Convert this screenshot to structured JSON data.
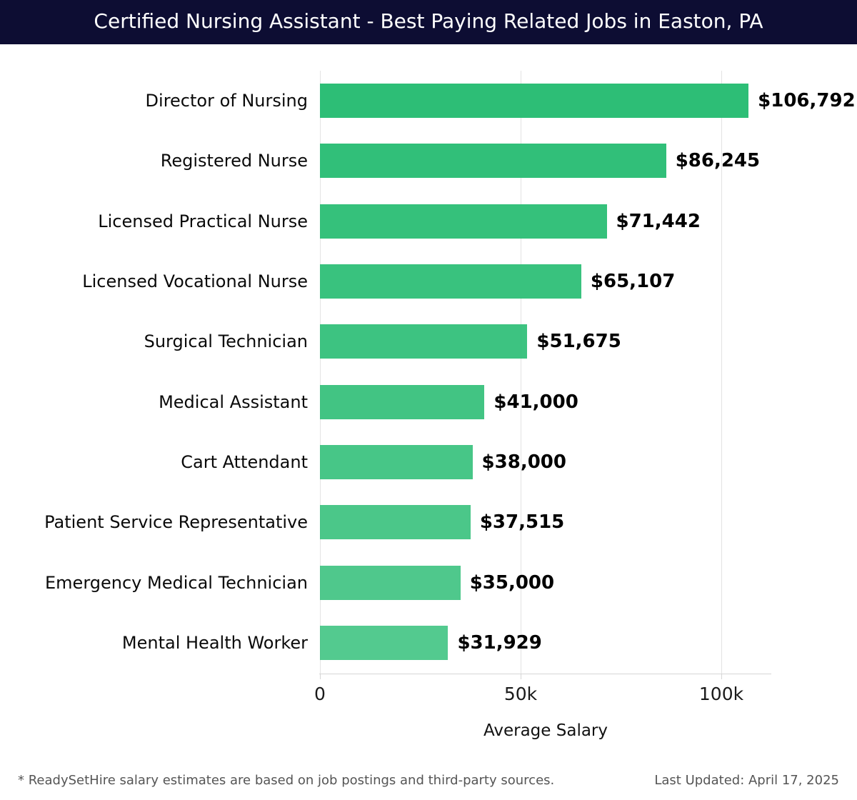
{
  "header": {
    "title": "Certified Nursing Assistant - Best Paying Related Jobs in Easton, PA",
    "bg_color": "#0d0d33",
    "text_color": "#ffffff"
  },
  "chart_data": {
    "type": "bar",
    "orientation": "horizontal",
    "title": "Certified Nursing Assistant - Best Paying Related Jobs in Easton, PA",
    "categories": [
      "Director of Nursing",
      "Registered Nurse",
      "Licensed Practical Nurse",
      "Licensed Vocational Nurse",
      "Surgical Technician",
      "Medical Assistant",
      "Cart Attendant",
      "Patient Service Representative",
      "Emergency Medical Technician",
      "Mental Health Worker"
    ],
    "values": [
      106792,
      86245,
      71442,
      65107,
      51675,
      41000,
      38000,
      37515,
      35000,
      31929
    ],
    "value_labels": [
      "$106,792",
      "$86,245",
      "$71,442",
      "$65,107",
      "$51,675",
      "$41,000",
      "$38,000",
      "$37,515",
      "$35,000",
      "$31,929"
    ],
    "xlabel": "Average Salary",
    "ylabel": "",
    "xlim": [
      0,
      112500
    ],
    "x_ticks": [
      {
        "value": 0,
        "label": "0"
      },
      {
        "value": 50000,
        "label": "50k"
      },
      {
        "value": 100000,
        "label": "100k"
      }
    ],
    "grid": true,
    "legend": false,
    "bar_color": "#2dbe76",
    "bar_opacity_start": 1.0,
    "bar_opacity_step": 0.02,
    "gridline_color": "#e3e3e3",
    "axis_line_color": "#d6d6d6"
  },
  "footer": {
    "note": "* ReadySetHire salary estimates are based on job postings and third-party sources.",
    "last_updated": "Last Updated: April 17, 2025"
  }
}
